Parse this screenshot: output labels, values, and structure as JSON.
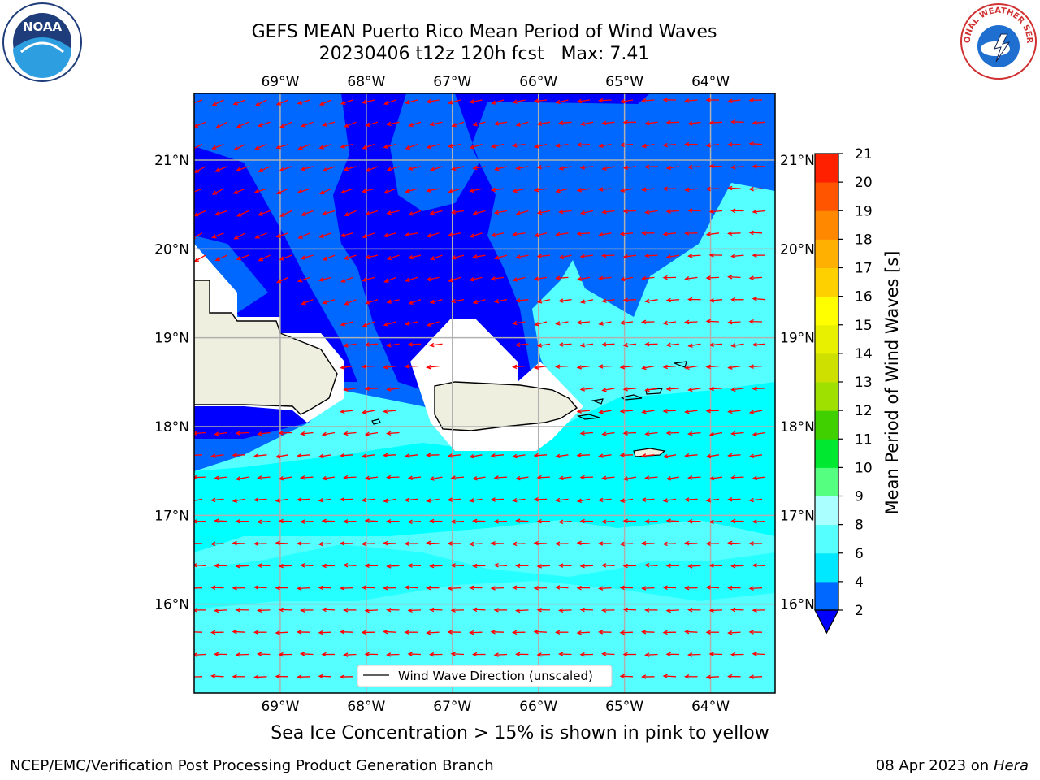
{
  "title_line1": "GEFS MEAN Puerto Rico Mean Period of Wind Waves",
  "title_line2": "20230406 t12z 120h fcst   Max: 7.41",
  "subtitle": "Sea Ice Concentration > 15% is shown in pink to yellow",
  "footer_left": "NCEP/EMC/Verification Post Processing Product Generation Branch",
  "footer_date": "08 Apr 2023 on",
  "footer_host": "Hera",
  "legend_label": "Wind Wave Direction (unscaled)",
  "logos": {
    "left": "NOAA",
    "right": "NATIONAL WEATHER SERVICE"
  },
  "map": {
    "lon_labels": [
      "69°W",
      "68°W",
      "67°W",
      "66°W",
      "65°W",
      "64°W"
    ],
    "lon_values": [
      -69,
      -68,
      -67,
      -66,
      -65,
      -64
    ],
    "lat_labels": [
      "21°N",
      "20°N",
      "19°N",
      "18°N",
      "17°N",
      "16°N"
    ],
    "lat_values": [
      21,
      20,
      19,
      18,
      17,
      16
    ],
    "lon_range": [
      -70.0,
      -63.25
    ],
    "lat_range": [
      15.0,
      21.75
    ],
    "land_color": "#efefdf",
    "arrow_color": "#ff0000",
    "grid_color": "#b0b0b0"
  },
  "colorbar": {
    "label": "Mean Period of Wind Waves [s]",
    "ticks": [
      "2",
      "4",
      "6",
      "8",
      "9",
      "10",
      "11",
      "12",
      "13",
      "14",
      "15",
      "16",
      "17",
      "18",
      "19",
      "20",
      "21"
    ],
    "colors": [
      "#0068ff",
      "#00e8ff",
      "#55ffff",
      "#aaffff",
      "#55ff80",
      "#00e830",
      "#40d000",
      "#a0e000",
      "#cde000",
      "#e8f000",
      "#ffff00",
      "#ffd000",
      "#ffb000",
      "#ff8800",
      "#ff5500",
      "#ff2000"
    ],
    "under_color": "#0000ff",
    "over_color": "#ff0000"
  }
}
